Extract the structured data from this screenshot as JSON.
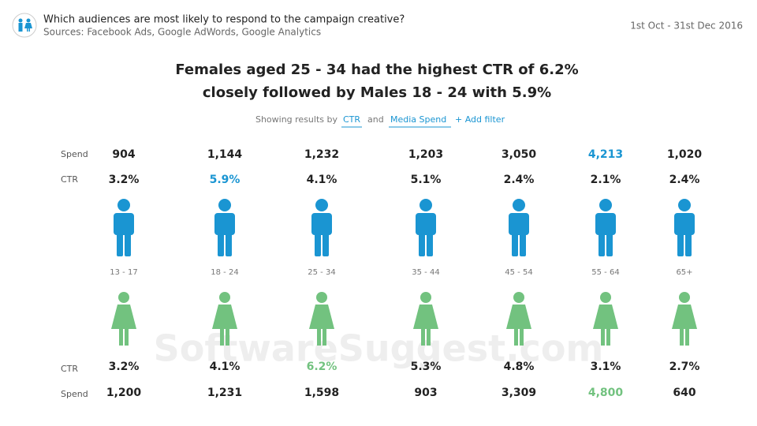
{
  "header": {
    "title": "Which audiences are most likely to respond to the campaign creative?",
    "sources": "Sources: Facebook Ads, Google AdWords, Google Analytics",
    "date_range": "1st Oct - 31st Dec 2016"
  },
  "headline": {
    "line1": "Females aged 25 - 34 had the highest CTR of 6.2%",
    "line2": "closely followed by Males 18 - 24 with 5.9%"
  },
  "filters": {
    "prefix": "Showing results by",
    "metric": "CTR",
    "joiner": "and",
    "dimension": "Media Spend",
    "add": "+ Add filter"
  },
  "male": {
    "spend_label": "Spend",
    "ctr_label": "CTR",
    "spend": [
      "904",
      "1,144",
      "1,232",
      "1,203",
      "3,050",
      "4,213",
      "1,020"
    ],
    "ctr": [
      "3.2%",
      "5.9%",
      "4.1%",
      "5.1%",
      "2.4%",
      "2.1%",
      "2.4%"
    ]
  },
  "age_groups": [
    "13 - 17",
    "18 - 24",
    "25 - 34",
    "35 - 44",
    "45 - 54",
    "55 - 64",
    "65+"
  ],
  "female": {
    "ctr_label": "CTR",
    "spend_label": "Spend",
    "ctr": [
      "3.2%",
      "4.1%",
      "6.2%",
      "5.3%",
      "4.8%",
      "3.1%",
      "2.7%"
    ],
    "spend": [
      "1,200",
      "1,231",
      "1,598",
      "903",
      "3,309",
      "4,800",
      "640"
    ]
  },
  "watermark": "SoftwareSuggest.com"
}
